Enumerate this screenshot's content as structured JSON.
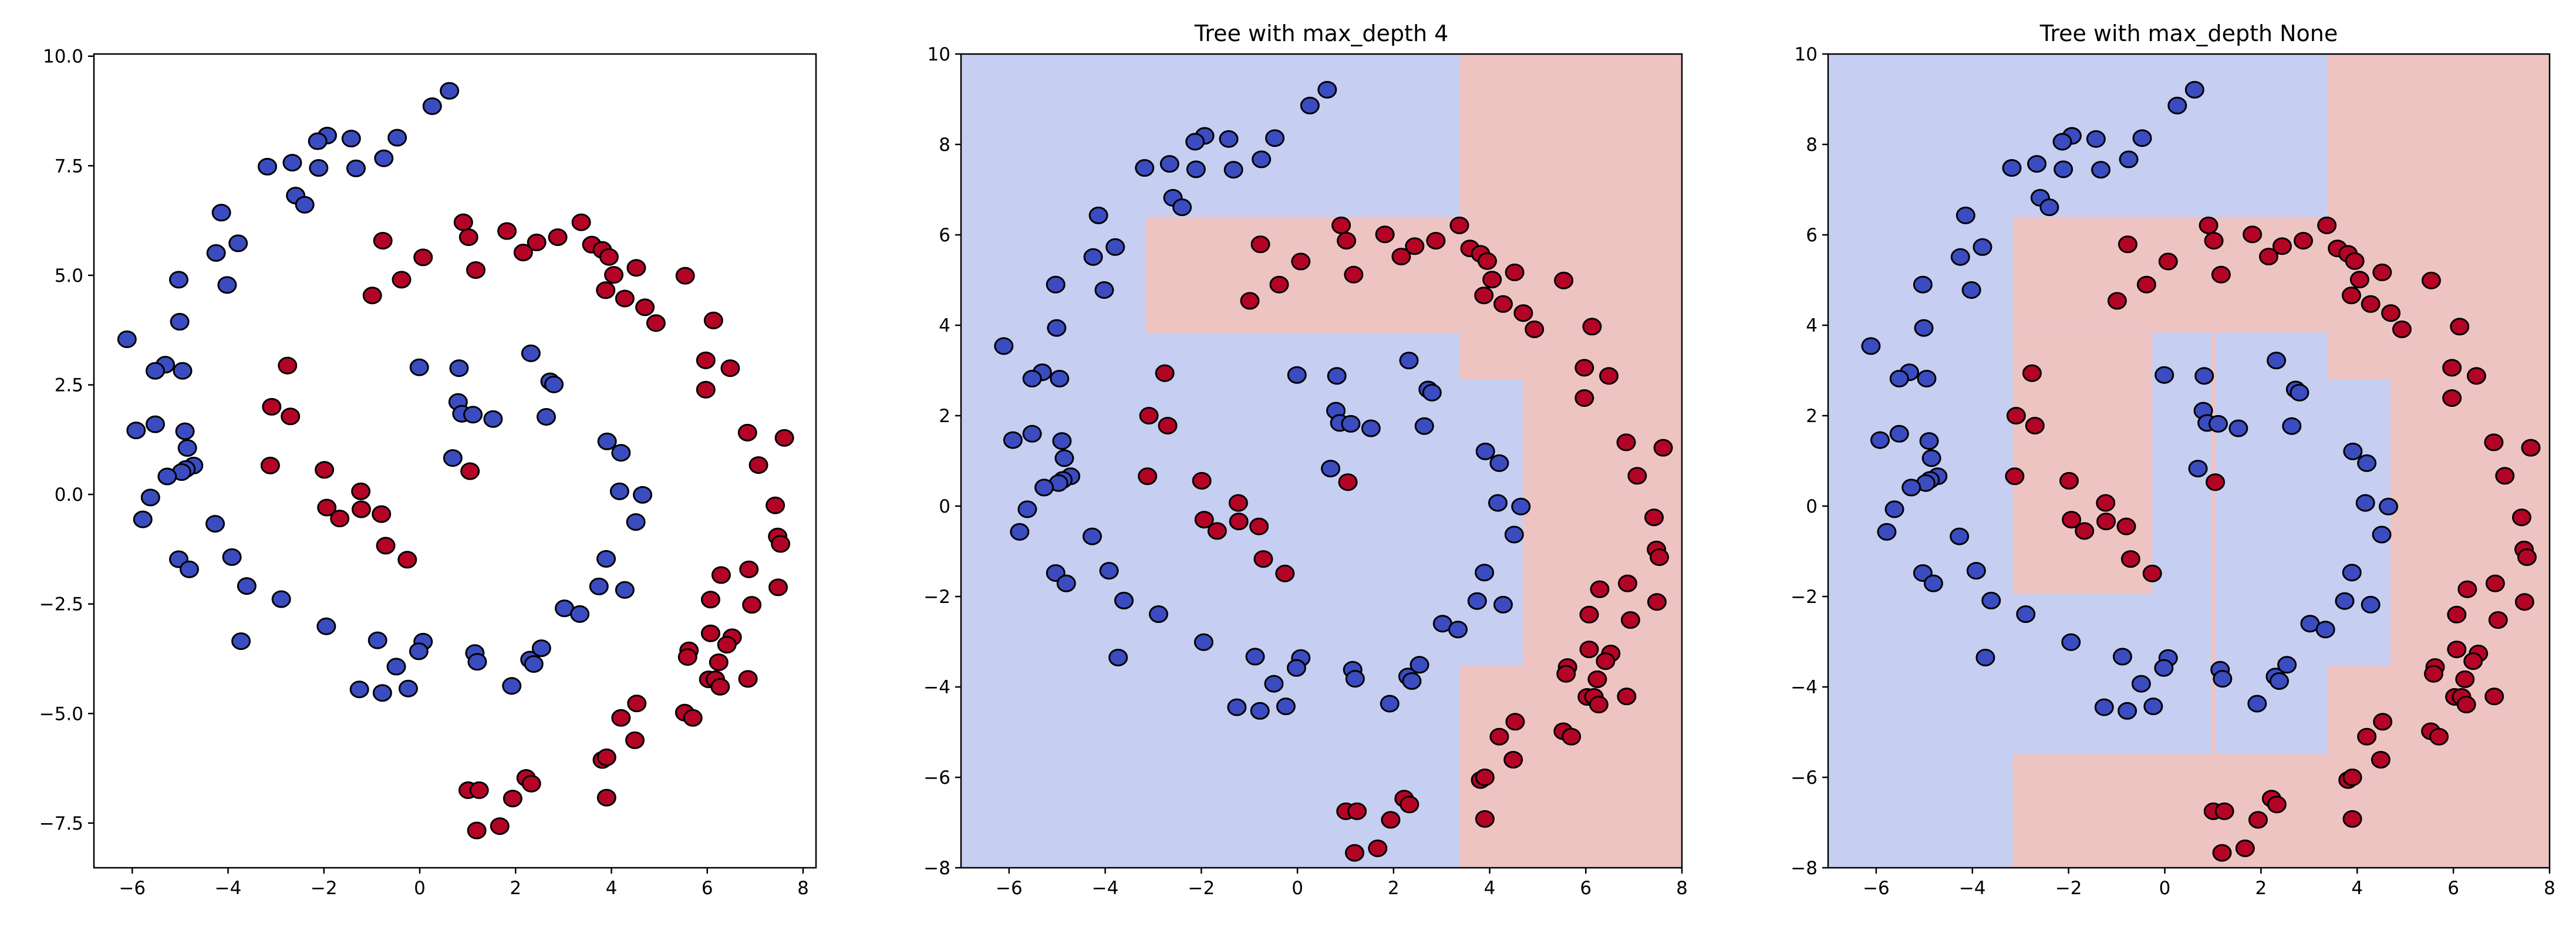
{
  "chart_data": {
    "type": "scatter",
    "region_colors": {
      "class0": "#c6cff1",
      "class1": "#eec4c3"
    },
    "series": [
      {
        "color": "#3b4cc0",
        "points": [
          [
            0.62,
            9.21
          ],
          [
            0.26,
            8.86
          ],
          [
            -1.93,
            8.19
          ],
          [
            -2.13,
            8.06
          ],
          [
            -1.43,
            8.12
          ],
          [
            -0.47,
            8.14
          ],
          [
            -3.18,
            7.48
          ],
          [
            -2.66,
            7.57
          ],
          [
            -2.11,
            7.45
          ],
          [
            -1.33,
            7.44
          ],
          [
            -0.75,
            7.67
          ],
          [
            -2.59,
            6.82
          ],
          [
            -2.4,
            6.61
          ],
          [
            -4.14,
            6.43
          ],
          [
            -3.79,
            5.73
          ],
          [
            -4.25,
            5.51
          ],
          [
            -5.03,
            4.9
          ],
          [
            -4.02,
            4.78
          ],
          [
            -5.01,
            3.94
          ],
          [
            -6.11,
            3.54
          ],
          [
            -5.31,
            2.96
          ],
          [
            -5.52,
            2.82
          ],
          [
            -4.95,
            2.82
          ],
          [
            -0.01,
            2.9
          ],
          [
            0.82,
            2.88
          ],
          [
            2.32,
            3.22
          ],
          [
            2.72,
            2.58
          ],
          [
            2.8,
            2.51
          ],
          [
            0.8,
            2.11
          ],
          [
            0.88,
            1.84
          ],
          [
            1.11,
            1.82
          ],
          [
            1.53,
            1.72
          ],
          [
            2.64,
            1.77
          ],
          [
            -5.92,
            1.46
          ],
          [
            -5.52,
            1.6
          ],
          [
            -4.9,
            1.44
          ],
          [
            -4.85,
            1.06
          ],
          [
            -4.72,
            0.66
          ],
          [
            -4.88,
            0.58
          ],
          [
            -4.97,
            0.51
          ],
          [
            -5.27,
            0.41
          ],
          [
            -5.62,
            -0.07
          ],
          [
            -5.78,
            -0.57
          ],
          [
            0.69,
            0.83
          ],
          [
            3.91,
            1.21
          ],
          [
            4.2,
            0.95
          ],
          [
            4.17,
            0.07
          ],
          [
            4.65,
            -0.01
          ],
          [
            4.51,
            -0.63
          ],
          [
            -4.27,
            -0.67
          ],
          [
            -5.03,
            -1.48
          ],
          [
            -4.81,
            -1.71
          ],
          [
            -3.92,
            -1.43
          ],
          [
            -3.61,
            -2.09
          ],
          [
            -2.89,
            -2.39
          ],
          [
            3.89,
            -1.47
          ],
          [
            3.74,
            -2.1
          ],
          [
            4.28,
            -2.18
          ],
          [
            3.02,
            -2.6
          ],
          [
            3.34,
            -2.73
          ],
          [
            -3.73,
            -3.35
          ],
          [
            -1.95,
            -3.01
          ],
          [
            -0.88,
            -3.33
          ],
          [
            0.07,
            -3.36
          ],
          [
            -0.02,
            -3.58
          ],
          [
            -0.49,
            -3.93
          ],
          [
            -1.26,
            -4.45
          ],
          [
            -0.78,
            -4.53
          ],
          [
            -0.24,
            -4.43
          ],
          [
            1.15,
            -3.62
          ],
          [
            1.2,
            -3.82
          ],
          [
            1.92,
            -4.37
          ],
          [
            2.3,
            -3.77
          ],
          [
            2.38,
            -3.87
          ],
          [
            2.54,
            -3.51
          ]
        ]
      },
      {
        "color": "#b40426",
        "points": [
          [
            0.91,
            6.21
          ],
          [
            1.02,
            5.87
          ],
          [
            1.82,
            6.01
          ],
          [
            2.44,
            5.75
          ],
          [
            2.16,
            5.52
          ],
          [
            2.88,
            5.87
          ],
          [
            3.37,
            6.21
          ],
          [
            3.59,
            5.7
          ],
          [
            3.81,
            5.58
          ],
          [
            3.95,
            5.42
          ],
          [
            4.52,
            5.17
          ],
          [
            4.05,
            5.01
          ],
          [
            3.88,
            4.66
          ],
          [
            4.28,
            4.47
          ],
          [
            4.7,
            4.27
          ],
          [
            4.93,
            3.91
          ],
          [
            5.54,
            4.99
          ],
          [
            6.13,
            3.97
          ],
          [
            5.97,
            3.06
          ],
          [
            6.48,
            2.88
          ],
          [
            5.97,
            2.39
          ],
          [
            1.17,
            5.12
          ],
          [
            -0.77,
            5.79
          ],
          [
            0.07,
            5.41
          ],
          [
            -0.38,
            4.9
          ],
          [
            -0.99,
            4.54
          ],
          [
            -2.76,
            2.94
          ],
          [
            -3.09,
            2.0
          ],
          [
            -2.7,
            1.78
          ],
          [
            -3.12,
            0.66
          ],
          [
            -1.99,
            0.56
          ],
          [
            1.05,
            0.53
          ],
          [
            -1.23,
            0.07
          ],
          [
            -1.94,
            -0.3
          ],
          [
            -1.67,
            -0.55
          ],
          [
            -1.22,
            -0.34
          ],
          [
            -0.8,
            -0.45
          ],
          [
            -0.71,
            -1.17
          ],
          [
            -0.26,
            -1.49
          ],
          [
            6.84,
            1.41
          ],
          [
            7.61,
            1.29
          ],
          [
            7.07,
            0.67
          ],
          [
            7.42,
            -0.25
          ],
          [
            7.47,
            -0.96
          ],
          [
            7.53,
            -1.13
          ],
          [
            6.87,
            -1.71
          ],
          [
            6.29,
            -1.84
          ],
          [
            7.48,
            -2.12
          ],
          [
            6.07,
            -2.4
          ],
          [
            6.93,
            -2.52
          ],
          [
            6.07,
            -3.17
          ],
          [
            6.52,
            -3.26
          ],
          [
            6.41,
            -3.43
          ],
          [
            5.62,
            -3.56
          ],
          [
            5.59,
            -3.71
          ],
          [
            6.24,
            -3.83
          ],
          [
            6.03,
            -4.22
          ],
          [
            6.17,
            -4.22
          ],
          [
            6.27,
            -4.39
          ],
          [
            6.85,
            -4.21
          ],
          [
            4.53,
            -4.77
          ],
          [
            4.2,
            -5.1
          ],
          [
            5.53,
            -4.98
          ],
          [
            5.7,
            -5.1
          ],
          [
            4.49,
            -5.61
          ],
          [
            3.81,
            -6.06
          ],
          [
            3.9,
            -6.0
          ],
          [
            3.9,
            -6.92
          ],
          [
            2.22,
            -6.47
          ],
          [
            2.33,
            -6.6
          ],
          [
            1.94,
            -6.94
          ],
          [
            1.01,
            -6.75
          ],
          [
            1.24,
            -6.75
          ],
          [
            1.19,
            -7.67
          ],
          [
            1.67,
            -7.57
          ]
        ]
      }
    ],
    "panels": [
      {
        "title": "",
        "xlim": [
          -6.8,
          8.27
        ],
        "ylim": [
          -8.52,
          10.05
        ],
        "grid": false,
        "xticks": [
          -6,
          -4,
          -2,
          0,
          2,
          4,
          6,
          8
        ],
        "xtick_labels": [
          "−6",
          "−4",
          "−2",
          "0",
          "2",
          "4",
          "6",
          "8"
        ],
        "yticks": [
          -7.5,
          -5,
          -2.5,
          0,
          2.5,
          5,
          7.5,
          10
        ],
        "ytick_labels": [
          "−7.5",
          "−5.0",
          "−2.5",
          "0.0",
          "2.5",
          "5.0",
          "7.5",
          "10.0"
        ],
        "regions": []
      },
      {
        "title": "Tree with max_depth 4",
        "xlim": [
          -7,
          8
        ],
        "ylim": [
          -8,
          10
        ],
        "grid": false,
        "xticks": [
          -6,
          -4,
          -2,
          0,
          2,
          4,
          6,
          8
        ],
        "xtick_labels": [
          "−6",
          "−4",
          "−2",
          "0",
          "2",
          "4",
          "6",
          "8"
        ],
        "yticks": [
          -8,
          -6,
          -4,
          -2,
          0,
          2,
          4,
          6,
          8,
          10
        ],
        "ytick_labels": [
          "−8",
          "−6",
          "−4",
          "−2",
          "0",
          "2",
          "4",
          "6",
          "8",
          "10"
        ],
        "regions": [
          {
            "class": 1,
            "x": [
              3.38,
              8
            ],
            "y": [
              -8,
              10
            ]
          },
          {
            "class": 1,
            "x": [
              -3.16,
              3.38
            ],
            "y": [
              3.82,
              6.4
            ]
          },
          {
            "class": 0,
            "x": [
              3.38,
              4.69
            ],
            "y": [
              -3.52,
              2.81
            ]
          }
        ]
      },
      {
        "title": "Tree with max_depth None",
        "xlim": [
          -7,
          8
        ],
        "ylim": [
          -8,
          10
        ],
        "grid": false,
        "xticks": [
          -6,
          -4,
          -2,
          0,
          2,
          4,
          6,
          8
        ],
        "xtick_labels": [
          "−6",
          "−4",
          "−2",
          "0",
          "2",
          "4",
          "6",
          "8"
        ],
        "yticks": [
          -8,
          -6,
          -4,
          -2,
          0,
          2,
          4,
          6,
          8,
          10
        ],
        "ytick_labels": [
          "−8",
          "−6",
          "−4",
          "−2",
          "0",
          "2",
          "4",
          "6",
          "8",
          "10"
        ],
        "regions": [
          {
            "class": 1,
            "x": [
              3.38,
              8
            ],
            "y": [
              -8,
              10
            ]
          },
          {
            "class": 1,
            "x": [
              -3.16,
              3.38
            ],
            "y": [
              3.84,
              6.4
            ]
          },
          {
            "class": 1,
            "x": [
              -3.16,
              -0.26
            ],
            "y": [
              -1.95,
              3.84
            ]
          },
          {
            "class": 1,
            "x": [
              0.96,
              1.06
            ],
            "y": [
              -5.49,
              3.84
            ]
          },
          {
            "class": 1,
            "x": [
              -3.16,
              3.38
            ],
            "y": [
              -8,
              -5.49
            ]
          },
          {
            "class": 0,
            "x": [
              3.38,
              4.69
            ],
            "y": [
              -3.52,
              2.81
            ]
          }
        ]
      }
    ]
  }
}
